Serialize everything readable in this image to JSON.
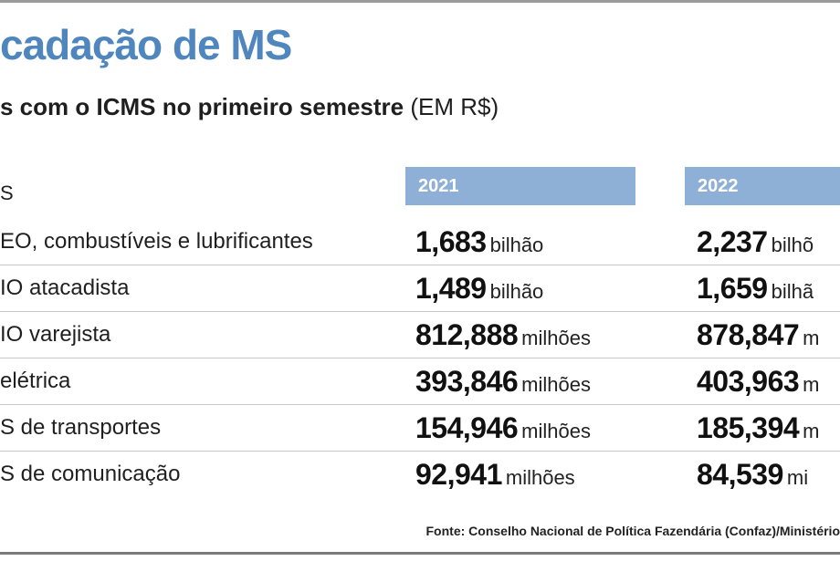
{
  "title": "cadação de MS",
  "subtitle": {
    "bold": "s com o ICMS no primeiro semestre",
    "normal": " (EM R$)"
  },
  "table": {
    "first_col_header": "S",
    "columns": [
      "2021",
      "2022"
    ],
    "rows": [
      {
        "label": "EO, combustíveis e lubrificantes",
        "v2021": "1,683",
        "u2021": "bilhão",
        "v2022": "2,237",
        "u2022": "bilhõ"
      },
      {
        "label": "IO atacadista",
        "v2021": "1,489",
        "u2021": "bilhão",
        "v2022": "1,659",
        "u2022": "bilhã"
      },
      {
        "label": "IO varejista",
        "v2021": "812,888",
        "u2021": "milhões",
        "v2022": "878,847",
        "u2022": "m"
      },
      {
        "label": "elétrica",
        "v2021": "393,846",
        "u2021": "milhões",
        "v2022": "403,963",
        "u2022": "m"
      },
      {
        "label": "S de transportes",
        "v2021": "154,946",
        "u2021": "milhões",
        "v2022": "185,394",
        "u2022": "m"
      },
      {
        "label": "S de comunicação",
        "v2021": "92,941",
        "u2021": "milhões",
        "v2022": "84,539",
        "u2022": "mi"
      }
    ]
  },
  "source": "Fonte: Conselho Nacional de Política Fazendária (Confaz)/Ministério"
}
